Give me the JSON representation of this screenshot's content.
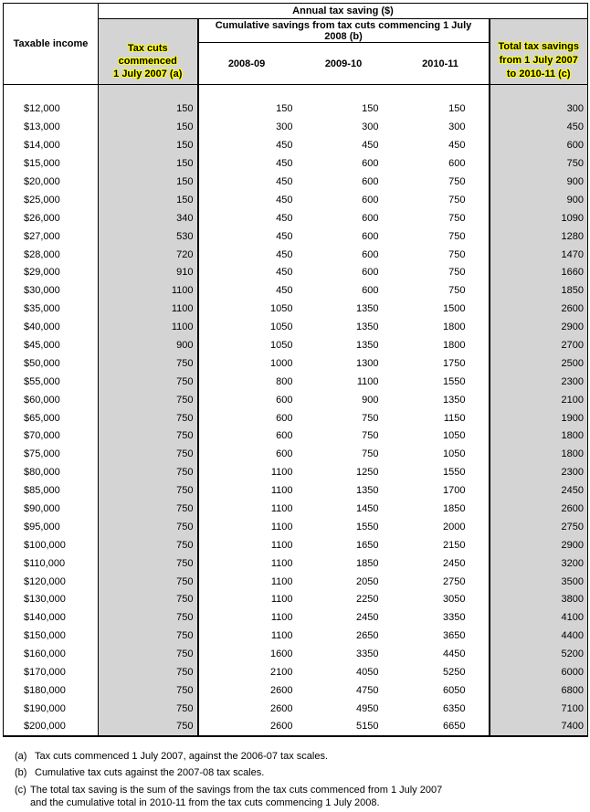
{
  "table": {
    "header": {
      "taxable_income": "Taxable income",
      "annual_tax_saving": "Annual tax saving ($)",
      "tax_cuts_2007": "Tax cuts\ncommenced\n1 July 2007 (a)",
      "cumulative_group": "Cumulative savings from tax cuts commencing 1 July\n2008 (b)",
      "year_cols": [
        "2008-09",
        "2009-10",
        "2010-11"
      ],
      "total_savings": "Total tax savings\nfrom 1 July 2007\nto 2010-11 (c)"
    },
    "rows": [
      {
        "income": "$12,000",
        "tax_cuts_2007": "150",
        "y2008_09": "150",
        "y2009_10": "150",
        "y2010_11": "150",
        "total": "300"
      },
      {
        "income": "$13,000",
        "tax_cuts_2007": "150",
        "y2008_09": "300",
        "y2009_10": "300",
        "y2010_11": "300",
        "total": "450"
      },
      {
        "income": "$14,000",
        "tax_cuts_2007": "150",
        "y2008_09": "450",
        "y2009_10": "450",
        "y2010_11": "450",
        "total": "600"
      },
      {
        "income": "$15,000",
        "tax_cuts_2007": "150",
        "y2008_09": "450",
        "y2009_10": "600",
        "y2010_11": "600",
        "total": "750"
      },
      {
        "income": "$20,000",
        "tax_cuts_2007": "150",
        "y2008_09": "450",
        "y2009_10": "600",
        "y2010_11": "750",
        "total": "900"
      },
      {
        "income": "$25,000",
        "tax_cuts_2007": "150",
        "y2008_09": "450",
        "y2009_10": "600",
        "y2010_11": "750",
        "total": "900"
      },
      {
        "income": "$26,000",
        "tax_cuts_2007": "340",
        "y2008_09": "450",
        "y2009_10": "600",
        "y2010_11": "750",
        "total": "1090"
      },
      {
        "income": "$27,000",
        "tax_cuts_2007": "530",
        "y2008_09": "450",
        "y2009_10": "600",
        "y2010_11": "750",
        "total": "1280"
      },
      {
        "income": "$28,000",
        "tax_cuts_2007": "720",
        "y2008_09": "450",
        "y2009_10": "600",
        "y2010_11": "750",
        "total": "1470"
      },
      {
        "income": "$29,000",
        "tax_cuts_2007": "910",
        "y2008_09": "450",
        "y2009_10": "600",
        "y2010_11": "750",
        "total": "1660"
      },
      {
        "income": "$30,000",
        "tax_cuts_2007": "1100",
        "y2008_09": "450",
        "y2009_10": "600",
        "y2010_11": "750",
        "total": "1850"
      },
      {
        "income": "$35,000",
        "tax_cuts_2007": "1100",
        "y2008_09": "1050",
        "y2009_10": "1350",
        "y2010_11": "1500",
        "total": "2600"
      },
      {
        "income": "$40,000",
        "tax_cuts_2007": "1100",
        "y2008_09": "1050",
        "y2009_10": "1350",
        "y2010_11": "1800",
        "total": "2900"
      },
      {
        "income": "$45,000",
        "tax_cuts_2007": "900",
        "y2008_09": "1050",
        "y2009_10": "1350",
        "y2010_11": "1800",
        "total": "2700"
      },
      {
        "income": "$50,000",
        "tax_cuts_2007": "750",
        "y2008_09": "1000",
        "y2009_10": "1300",
        "y2010_11": "1750",
        "total": "2500"
      },
      {
        "income": "$55,000",
        "tax_cuts_2007": "750",
        "y2008_09": "800",
        "y2009_10": "1100",
        "y2010_11": "1550",
        "total": "2300"
      },
      {
        "income": "$60,000",
        "tax_cuts_2007": "750",
        "y2008_09": "600",
        "y2009_10": "900",
        "y2010_11": "1350",
        "total": "2100"
      },
      {
        "income": "$65,000",
        "tax_cuts_2007": "750",
        "y2008_09": "600",
        "y2009_10": "750",
        "y2010_11": "1150",
        "total": "1900"
      },
      {
        "income": "$70,000",
        "tax_cuts_2007": "750",
        "y2008_09": "600",
        "y2009_10": "750",
        "y2010_11": "1050",
        "total": "1800"
      },
      {
        "income": "$75,000",
        "tax_cuts_2007": "750",
        "y2008_09": "600",
        "y2009_10": "750",
        "y2010_11": "1050",
        "total": "1800"
      },
      {
        "income": "$80,000",
        "tax_cuts_2007": "750",
        "y2008_09": "1100",
        "y2009_10": "1250",
        "y2010_11": "1550",
        "total": "2300"
      },
      {
        "income": "$85,000",
        "tax_cuts_2007": "750",
        "y2008_09": "1100",
        "y2009_10": "1350",
        "y2010_11": "1700",
        "total": "2450"
      },
      {
        "income": "$90,000",
        "tax_cuts_2007": "750",
        "y2008_09": "1100",
        "y2009_10": "1450",
        "y2010_11": "1850",
        "total": "2600"
      },
      {
        "income": "$95,000",
        "tax_cuts_2007": "750",
        "y2008_09": "1100",
        "y2009_10": "1550",
        "y2010_11": "2000",
        "total": "2750"
      },
      {
        "income": "$100,000",
        "tax_cuts_2007": "750",
        "y2008_09": "1100",
        "y2009_10": "1650",
        "y2010_11": "2150",
        "total": "2900"
      },
      {
        "income": "$110,000",
        "tax_cuts_2007": "750",
        "y2008_09": "1100",
        "y2009_10": "1850",
        "y2010_11": "2450",
        "total": "3200"
      },
      {
        "income": "$120,000",
        "tax_cuts_2007": "750",
        "y2008_09": "1100",
        "y2009_10": "2050",
        "y2010_11": "2750",
        "total": "3500"
      },
      {
        "income": "$130,000",
        "tax_cuts_2007": "750",
        "y2008_09": "1100",
        "y2009_10": "2250",
        "y2010_11": "3050",
        "total": "3800"
      },
      {
        "income": "$140,000",
        "tax_cuts_2007": "750",
        "y2008_09": "1100",
        "y2009_10": "2450",
        "y2010_11": "3350",
        "total": "4100"
      },
      {
        "income": "$150,000",
        "tax_cuts_2007": "750",
        "y2008_09": "1100",
        "y2009_10": "2650",
        "y2010_11": "3650",
        "total": "4400"
      },
      {
        "income": "$160,000",
        "tax_cuts_2007": "750",
        "y2008_09": "1600",
        "y2009_10": "3350",
        "y2010_11": "4450",
        "total": "5200"
      },
      {
        "income": "$170,000",
        "tax_cuts_2007": "750",
        "y2008_09": "2100",
        "y2009_10": "4050",
        "y2010_11": "5250",
        "total": "6000"
      },
      {
        "income": "$180,000",
        "tax_cuts_2007": "750",
        "y2008_09": "2600",
        "y2009_10": "4750",
        "y2010_11": "6050",
        "total": "6800"
      },
      {
        "income": "$190,000",
        "tax_cuts_2007": "750",
        "y2008_09": "2600",
        "y2009_10": "4950",
        "y2010_11": "6350",
        "total": "7100"
      },
      {
        "income": "$200,000",
        "tax_cuts_2007": "750",
        "y2008_09": "2600",
        "y2009_10": "5150",
        "y2010_11": "6650",
        "total": "7400"
      }
    ]
  },
  "footnotes": [
    {
      "marker": "(a)",
      "lines": [
        "Tax cuts commenced 1 July 2007, against the 2006-07 tax scales."
      ]
    },
    {
      "marker": "(b)",
      "lines": [
        "Cumulative tax cuts against the 2007-08 tax scales."
      ]
    },
    {
      "marker": "(c)",
      "lines": [
        "The total tax saving is the sum of the savings from the tax cuts commenced from 1 July 2007",
        "and the cumulative total in 2010-11 from the tax cuts commencing 1 July 2008."
      ]
    }
  ],
  "colors": {
    "shaded_column_bg": "#d4d4d4",
    "header_text_glow": "#ffff00",
    "border": "#000000"
  }
}
